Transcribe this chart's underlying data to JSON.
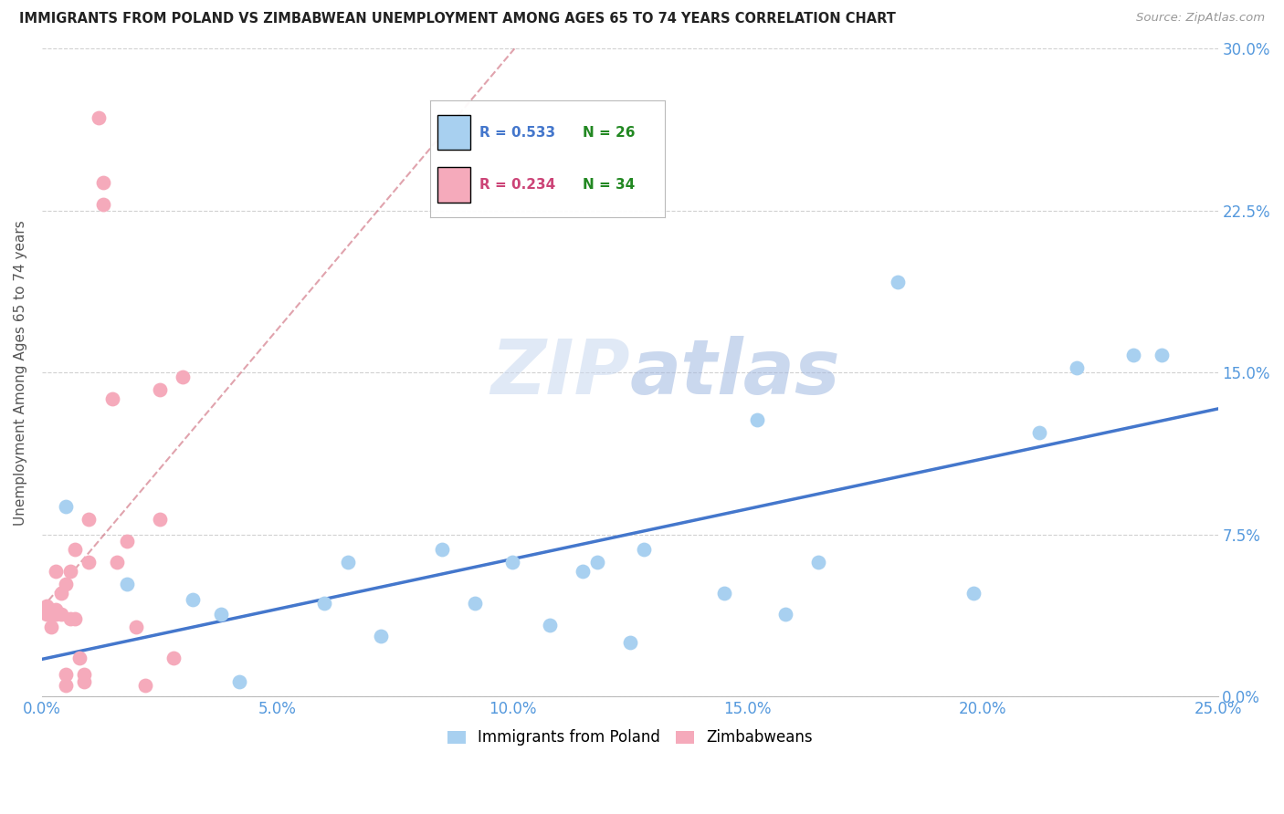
{
  "title": "IMMIGRANTS FROM POLAND VS ZIMBABWEAN UNEMPLOYMENT AMONG AGES 65 TO 74 YEARS CORRELATION CHART",
  "source": "Source: ZipAtlas.com",
  "ylabel": "Unemployment Among Ages 65 to 74 years",
  "xlim": [
    0,
    0.25
  ],
  "ylim": [
    0,
    0.3
  ],
  "legend1_r": "R = 0.533",
  "legend1_n": "N = 26",
  "legend2_r": "R = 0.234",
  "legend2_n": "N = 34",
  "blue_color": "#A8D0F0",
  "pink_color": "#F5AABB",
  "blue_line_color": "#4477CC",
  "pink_line_color": "#CC6677",
  "watermark_zip": "ZIP",
  "watermark_atlas": "atlas",
  "blue_scatter_x": [
    0.005,
    0.018,
    0.032,
    0.038,
    0.042,
    0.06,
    0.065,
    0.072,
    0.085,
    0.092,
    0.1,
    0.108,
    0.115,
    0.118,
    0.125,
    0.128,
    0.145,
    0.152,
    0.158,
    0.165,
    0.182,
    0.198,
    0.212,
    0.22,
    0.232,
    0.238
  ],
  "blue_scatter_y": [
    0.088,
    0.052,
    0.045,
    0.038,
    0.007,
    0.043,
    0.062,
    0.028,
    0.068,
    0.043,
    0.062,
    0.033,
    0.058,
    0.062,
    0.025,
    0.068,
    0.048,
    0.128,
    0.038,
    0.062,
    0.192,
    0.048,
    0.122,
    0.152,
    0.158,
    0.158
  ],
  "pink_scatter_x": [
    0.001,
    0.001,
    0.002,
    0.002,
    0.002,
    0.003,
    0.003,
    0.003,
    0.004,
    0.004,
    0.005,
    0.005,
    0.005,
    0.006,
    0.006,
    0.007,
    0.007,
    0.008,
    0.009,
    0.009,
    0.01,
    0.01,
    0.012,
    0.013,
    0.013,
    0.015,
    0.016,
    0.018,
    0.02,
    0.022,
    0.025,
    0.025,
    0.028,
    0.03
  ],
  "pink_scatter_y": [
    0.038,
    0.042,
    0.032,
    0.038,
    0.04,
    0.038,
    0.04,
    0.058,
    0.038,
    0.048,
    0.005,
    0.01,
    0.052,
    0.036,
    0.058,
    0.036,
    0.068,
    0.018,
    0.007,
    0.01,
    0.062,
    0.082,
    0.268,
    0.238,
    0.228,
    0.138,
    0.062,
    0.072,
    0.032,
    0.005,
    0.142,
    0.082,
    0.018,
    0.148
  ]
}
